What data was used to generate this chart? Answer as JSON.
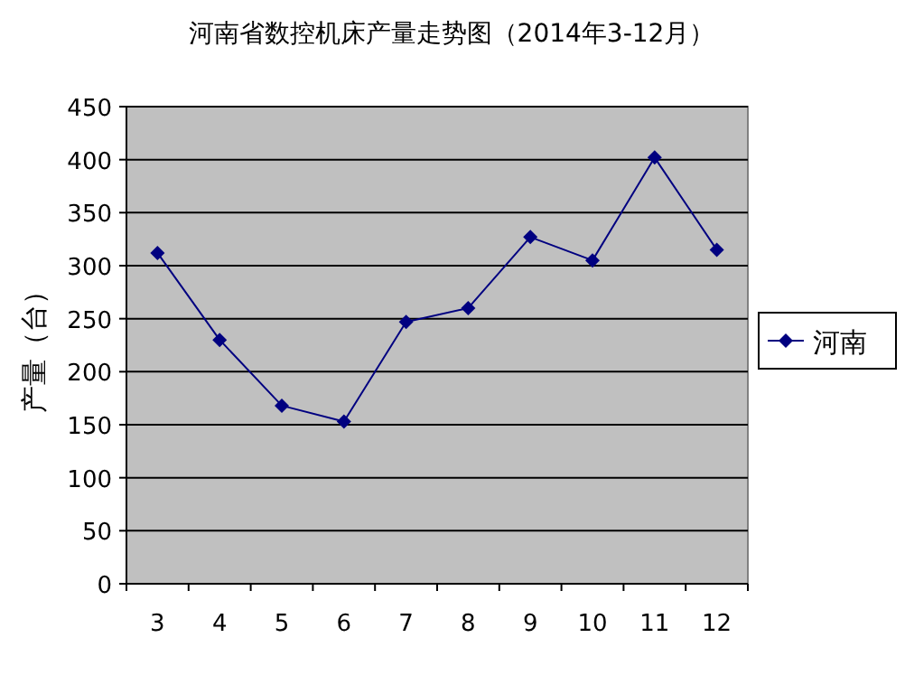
{
  "chart_data": {
    "type": "line",
    "title": "河南省数控机床产量走势图（2014年3-12月）",
    "ylabel": "产量（台）",
    "categories": [
      "3",
      "4",
      "5",
      "6",
      "7",
      "8",
      "9",
      "10",
      "11",
      "12"
    ],
    "series": [
      {
        "name": "河南",
        "color": "#000080",
        "values": [
          312,
          230,
          168,
          153,
          247,
          260,
          327,
          305,
          402,
          315
        ]
      }
    ],
    "ylim": [
      0,
      450
    ],
    "yticks": [
      0,
      50,
      100,
      150,
      200,
      250,
      300,
      350,
      400,
      450
    ],
    "grid": "y",
    "legend": "right",
    "marker": "diamond",
    "line_style": "solid"
  }
}
